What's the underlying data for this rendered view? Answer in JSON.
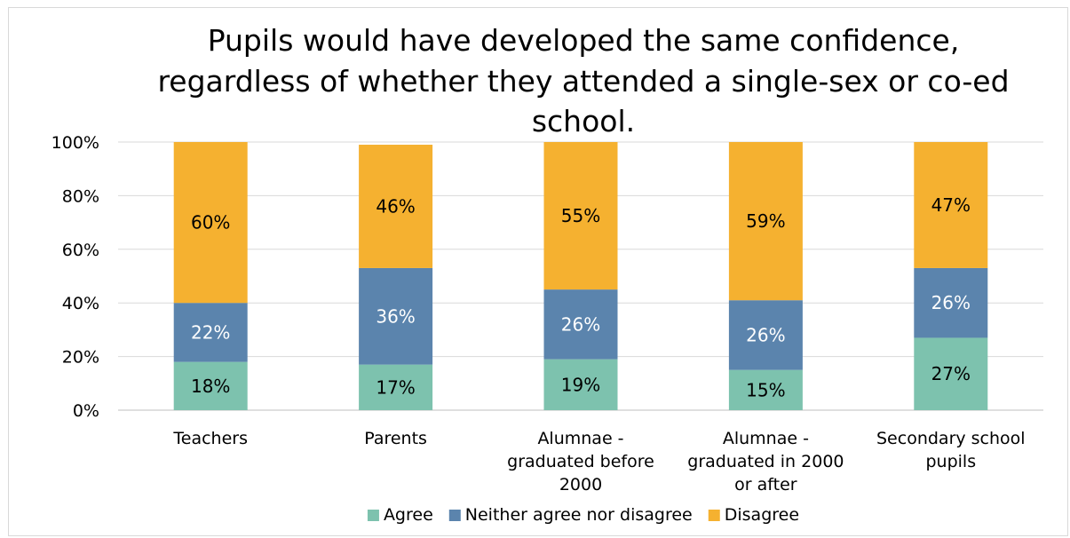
{
  "chart_data": {
    "type": "bar",
    "stacked": true,
    "percent_stacked": true,
    "title_lines": [
      "Pupils would have developed the same confidence,",
      "regardless of whether they attended a single-sex or co-ed",
      "school."
    ],
    "categories": [
      [
        "Teachers"
      ],
      [
        "Parents"
      ],
      [
        "Alumnae -",
        "graduated before",
        "2000"
      ],
      [
        "Alumnae -",
        "graduated in 2000",
        "or after"
      ],
      [
        "Secondary school",
        "pupils"
      ]
    ],
    "series": [
      {
        "name": "Agree",
        "color": "#7dc2ae",
        "label_color": "#000000",
        "values": [
          18,
          17,
          19,
          15,
          27
        ],
        "labels": [
          "18%",
          "17%",
          "19%",
          "15%",
          "27%"
        ]
      },
      {
        "name": "Neither agree nor disagree",
        "color": "#5b84ad",
        "label_color": "#ffffff",
        "values": [
          22,
          36,
          26,
          26,
          26
        ],
        "labels": [
          "22%",
          "36%",
          "26%",
          "26%",
          "26%"
        ]
      },
      {
        "name": "Disagree",
        "color": "#f5b130",
        "label_color": "#000000",
        "values": [
          60,
          46,
          55,
          59,
          47
        ],
        "labels": [
          "60%",
          "46%",
          "55%",
          "59%",
          "47%"
        ]
      }
    ],
    "y_ticks": [
      "0%",
      "20%",
      "40%",
      "60%",
      "80%",
      "100%"
    ],
    "ylim": [
      0,
      100
    ],
    "grid": true,
    "legend_position": "bottom"
  }
}
